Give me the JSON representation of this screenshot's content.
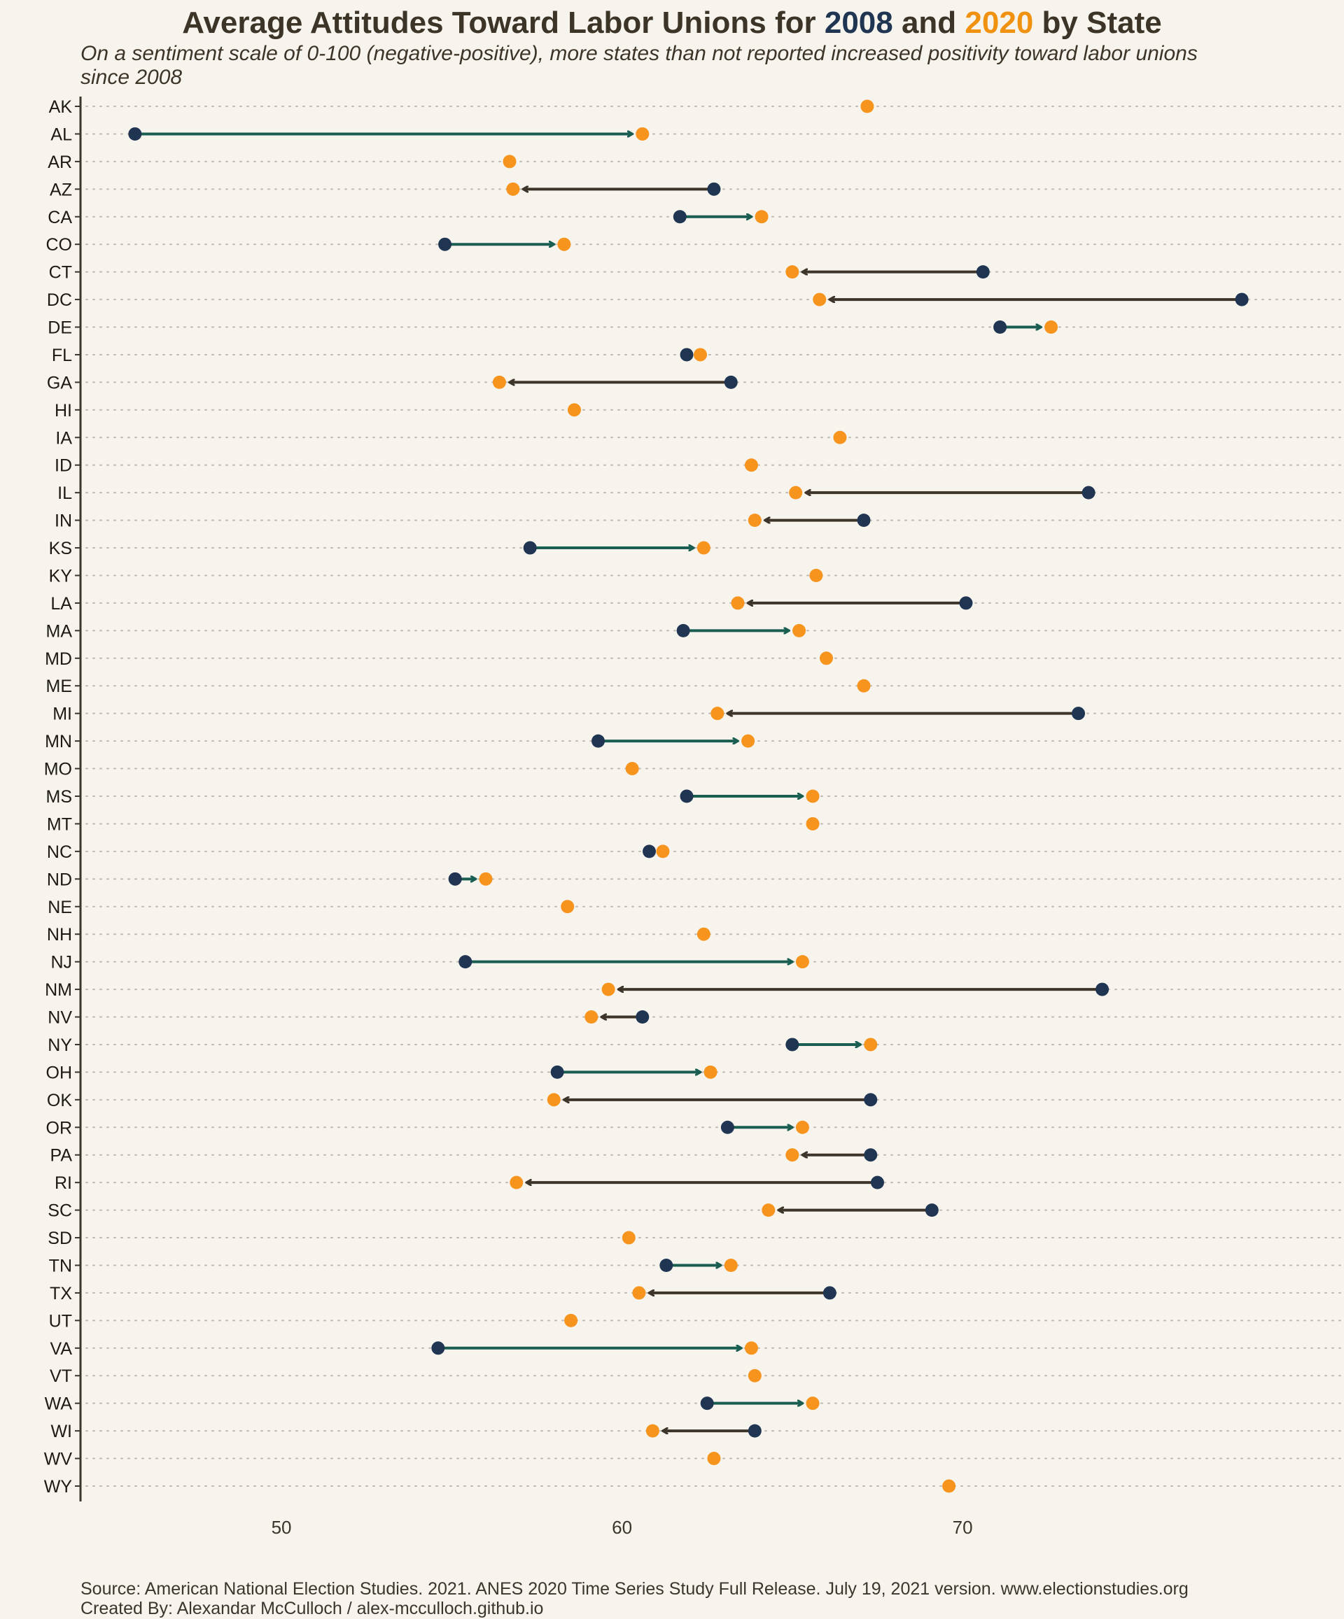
{
  "header": {
    "title_pre": "Average Attitudes Toward Labor Unions for ",
    "title_2008": "2008",
    "title_mid": " and ",
    "title_2020": "2020",
    "title_post": " by State",
    "subtitle_line1": "On a sentiment scale of 0-100 (negative-positive), more states than not reported increased positivity toward labor unions",
    "subtitle_line2": "since 2008"
  },
  "footer": {
    "source": "Source: American National Election Studies. 2021. ANES 2020 Time Series Study Full Release. July 19, 2021 version. www.electionstudies.org",
    "credit": "Created By: Alexandar McCulloch / alex-mcculloch.github.io"
  },
  "colors": {
    "y2008": "#1f3552",
    "y2020": "#f7941d",
    "increase": "#1a5e52",
    "decrease": "#3d342a",
    "background": "#f7f4ee",
    "grid": "#bdb8b0"
  },
  "chart_data": {
    "type": "dumbbell",
    "x_ticks": [
      50,
      60,
      70
    ],
    "xlim": [
      44.1,
      81.2
    ],
    "grid": "horizontal dotted",
    "legend": "none (colored years in title)",
    "series": [
      {
        "name": "2008"
      },
      {
        "name": "2020"
      }
    ],
    "states": [
      {
        "state": "AK",
        "v2008": null,
        "v2020": 67.2
      },
      {
        "state": "AL",
        "v2008": 45.7,
        "v2020": 60.6
      },
      {
        "state": "AR",
        "v2008": null,
        "v2020": 56.7
      },
      {
        "state": "AZ",
        "v2008": 62.7,
        "v2020": 56.8
      },
      {
        "state": "CA",
        "v2008": 61.7,
        "v2020": 64.1
      },
      {
        "state": "CO",
        "v2008": 54.8,
        "v2020": 58.3
      },
      {
        "state": "CT",
        "v2008": 70.6,
        "v2020": 65.0
      },
      {
        "state": "DC",
        "v2008": 78.2,
        "v2020": 65.8
      },
      {
        "state": "DE",
        "v2008": 71.1,
        "v2020": 72.6
      },
      {
        "state": "FL",
        "v2008": 61.9,
        "v2020": 62.3
      },
      {
        "state": "GA",
        "v2008": 63.2,
        "v2020": 56.4
      },
      {
        "state": "HI",
        "v2008": null,
        "v2020": 58.6
      },
      {
        "state": "IA",
        "v2008": null,
        "v2020": 66.4
      },
      {
        "state": "ID",
        "v2008": null,
        "v2020": 63.8
      },
      {
        "state": "IL",
        "v2008": 73.7,
        "v2020": 65.1
      },
      {
        "state": "IN",
        "v2008": 67.1,
        "v2020": 63.9
      },
      {
        "state": "KS",
        "v2008": 57.3,
        "v2020": 62.4
      },
      {
        "state": "KY",
        "v2008": null,
        "v2020": 65.7
      },
      {
        "state": "LA",
        "v2008": 70.1,
        "v2020": 63.4
      },
      {
        "state": "MA",
        "v2008": 61.8,
        "v2020": 65.2
      },
      {
        "state": "MD",
        "v2008": null,
        "v2020": 66.0
      },
      {
        "state": "ME",
        "v2008": null,
        "v2020": 67.1
      },
      {
        "state": "MI",
        "v2008": 73.4,
        "v2020": 62.8
      },
      {
        "state": "MN",
        "v2008": 59.3,
        "v2020": 63.7
      },
      {
        "state": "MO",
        "v2008": null,
        "v2020": 60.3
      },
      {
        "state": "MS",
        "v2008": 61.9,
        "v2020": 65.6
      },
      {
        "state": "MT",
        "v2008": null,
        "v2020": 65.6
      },
      {
        "state": "NC",
        "v2008": 60.8,
        "v2020": 61.2
      },
      {
        "state": "ND",
        "v2008": 55.1,
        "v2020": 56.0
      },
      {
        "state": "NE",
        "v2008": null,
        "v2020": 58.4
      },
      {
        "state": "NH",
        "v2008": null,
        "v2020": 62.4
      },
      {
        "state": "NJ",
        "v2008": 55.4,
        "v2020": 65.3
      },
      {
        "state": "NM",
        "v2008": 74.1,
        "v2020": 59.6
      },
      {
        "state": "NV",
        "v2008": 60.6,
        "v2020": 59.1
      },
      {
        "state": "NY",
        "v2008": 65.0,
        "v2020": 67.3
      },
      {
        "state": "OH",
        "v2008": 58.1,
        "v2020": 62.6
      },
      {
        "state": "OK",
        "v2008": 67.3,
        "v2020": 58.0
      },
      {
        "state": "OR",
        "v2008": 63.1,
        "v2020": 65.3
      },
      {
        "state": "PA",
        "v2008": 67.3,
        "v2020": 65.0
      },
      {
        "state": "RI",
        "v2008": 67.5,
        "v2020": 56.9
      },
      {
        "state": "SC",
        "v2008": 69.1,
        "v2020": 64.3
      },
      {
        "state": "SD",
        "v2008": null,
        "v2020": 60.2
      },
      {
        "state": "TN",
        "v2008": 61.3,
        "v2020": 63.2
      },
      {
        "state": "TX",
        "v2008": 66.1,
        "v2020": 60.5
      },
      {
        "state": "UT",
        "v2008": null,
        "v2020": 58.5
      },
      {
        "state": "VA",
        "v2008": 54.6,
        "v2020": 63.8
      },
      {
        "state": "VT",
        "v2008": null,
        "v2020": 63.9
      },
      {
        "state": "WA",
        "v2008": 62.5,
        "v2020": 65.6
      },
      {
        "state": "WI",
        "v2008": 63.9,
        "v2020": 60.9
      },
      {
        "state": "WV",
        "v2008": null,
        "v2020": 62.7
      },
      {
        "state": "WY",
        "v2008": null,
        "v2020": 69.6
      }
    ]
  }
}
